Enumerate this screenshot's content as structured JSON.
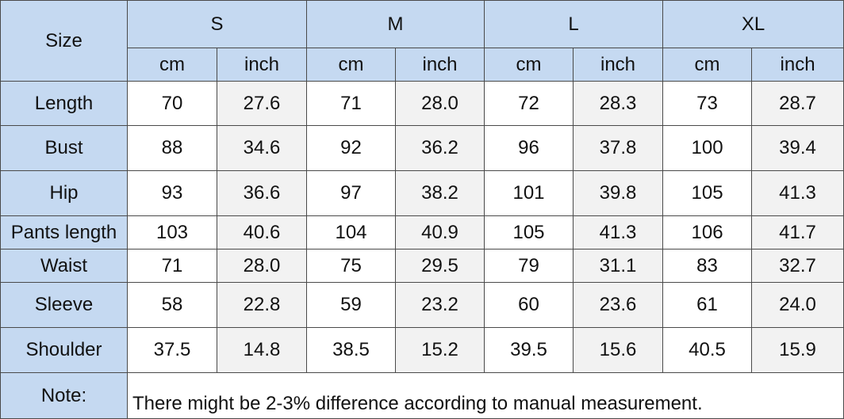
{
  "header": {
    "size_label": "Size",
    "sizes": [
      "S",
      "M",
      "L",
      "XL"
    ],
    "units": [
      "cm",
      "inch",
      "cm",
      "inch",
      "cm",
      "inch",
      "cm",
      "inch"
    ]
  },
  "rows": [
    {
      "label": "Length",
      "values": [
        "70",
        "27.6",
        "71",
        "28.0",
        "72",
        "28.3",
        "73",
        "28.7"
      ]
    },
    {
      "label": "Bust",
      "values": [
        "88",
        "34.6",
        "92",
        "36.2",
        "96",
        "37.8",
        "100",
        "39.4"
      ]
    },
    {
      "label": "Hip",
      "values": [
        "93",
        "36.6",
        "97",
        "38.2",
        "101",
        "39.8",
        "105",
        "41.3"
      ]
    },
    {
      "label": "Pants length",
      "values": [
        "103",
        "40.6",
        "104",
        "40.9",
        "105",
        "41.3",
        "106",
        "41.7"
      ]
    },
    {
      "label": "Waist",
      "values": [
        "71",
        "28.0",
        "75",
        "29.5",
        "79",
        "31.1",
        "83",
        "32.7"
      ]
    },
    {
      "label": "Sleeve",
      "values": [
        "58",
        "22.8",
        "59",
        "23.2",
        "60",
        "23.6",
        "61",
        "24.0"
      ]
    },
    {
      "label": "Shoulder",
      "values": [
        "37.5",
        "14.8",
        "38.5",
        "15.2",
        "39.5",
        "15.6",
        "40.5",
        "15.9"
      ]
    }
  ],
  "note": {
    "label": "Note:",
    "text": "There might be 2-3% difference according to manual measurement."
  }
}
